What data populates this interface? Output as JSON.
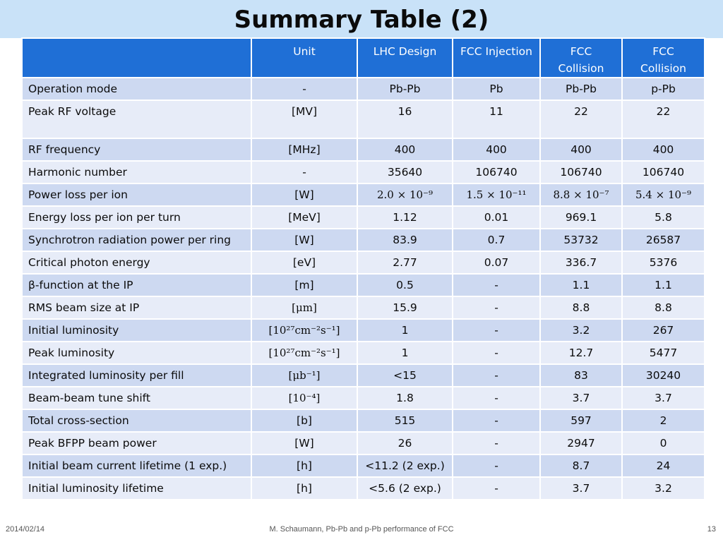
{
  "slide": {
    "title": "Summary Table (2)",
    "footer": {
      "date": "2014/02/14",
      "citation": "M. Schaumann, Pb-Pb and p-Pb performance of FCC",
      "page": "13"
    }
  },
  "table": {
    "headers": [
      "",
      "Unit",
      "LHC Design",
      "FCC Injection",
      "FCC Collision",
      "FCC Collision"
    ],
    "rows": [
      {
        "param": "Operation mode",
        "unit": "-",
        "lhc": "Pb-Pb",
        "fcc_inj": "Pb",
        "fcc_col1": "Pb-Pb",
        "fcc_col2": "p-Pb"
      },
      {
        "param": "Peak RF voltage",
        "unit": "[MV]",
        "lhc": "16",
        "fcc_inj": "11",
        "fcc_col1": "22",
        "fcc_col2": "22"
      },
      {
        "param": "RF frequency",
        "unit": "[MHz]",
        "lhc": "400",
        "fcc_inj": "400",
        "fcc_col1": "400",
        "fcc_col2": "400"
      },
      {
        "param": "Harmonic number",
        "unit": "-",
        "lhc": "35640",
        "fcc_inj": "106740",
        "fcc_col1": "106740",
        "fcc_col2": "106740"
      },
      {
        "param": "Power loss per ion",
        "unit": "[W]",
        "lhc": "2.0 × 10⁻⁹",
        "fcc_inj": "1.5 × 10⁻¹¹",
        "fcc_col1": "8.8 × 10⁻⁷",
        "fcc_col2": "5.4 × 10⁻⁹"
      },
      {
        "param": "Energy loss per ion per turn",
        "unit": "[MeV]",
        "lhc": "1.12",
        "fcc_inj": "0.01",
        "fcc_col1": "969.1",
        "fcc_col2": "5.8"
      },
      {
        "param": "Synchrotron radiation power per ring",
        "unit": "[W]",
        "lhc": "83.9",
        "fcc_inj": "0.7",
        "fcc_col1": "53732",
        "fcc_col2": "26587"
      },
      {
        "param": "Critical photon energy",
        "unit": "[eV]",
        "lhc": "2.77",
        "fcc_inj": "0.07",
        "fcc_col1": "336.7",
        "fcc_col2": "5376"
      },
      {
        "param": "β-function at the IP",
        "unit": "[m]",
        "lhc": "0.5",
        "fcc_inj": "-",
        "fcc_col1": "1.1",
        "fcc_col2": "1.1"
      },
      {
        "param": "RMS beam size at IP",
        "unit": "[μm]",
        "lhc": "15.9",
        "fcc_inj": "-",
        "fcc_col1": "8.8",
        "fcc_col2": "8.8"
      },
      {
        "param": "Initial luminosity",
        "unit": "[10²⁷cm⁻²s⁻¹]",
        "lhc": "1",
        "fcc_inj": "-",
        "fcc_col1": "3.2",
        "fcc_col2": "267"
      },
      {
        "param": "Peak luminosity",
        "unit": "[10²⁷cm⁻²s⁻¹]",
        "lhc": "1",
        "fcc_inj": "-",
        "fcc_col1": "12.7",
        "fcc_col2": "5477"
      },
      {
        "param": "Integrated luminosity per fill",
        "unit": "[μb⁻¹]",
        "lhc": "<15",
        "fcc_inj": "-",
        "fcc_col1": "83",
        "fcc_col2": "30240"
      },
      {
        "param": "Beam-beam tune shift",
        "unit": "[10⁻⁴]",
        "lhc": "1.8",
        "fcc_inj": "-",
        "fcc_col1": "3.7",
        "fcc_col2": "3.7"
      },
      {
        "param": "Total cross-section",
        "unit": "[b]",
        "lhc": "515",
        "fcc_inj": "-",
        "fcc_col1": "597",
        "fcc_col2": "2"
      },
      {
        "param": "Peak BFPP beam power",
        "unit": "[W]",
        "lhc": "26",
        "fcc_inj": "-",
        "fcc_col1": "2947",
        "fcc_col2": "0"
      },
      {
        "param": "Initial beam current lifetime (1 exp.)",
        "unit": "[h]",
        "lhc": "<11.2 (2 exp.)",
        "fcc_inj": "-",
        "fcc_col1": "8.7",
        "fcc_col2": "24"
      },
      {
        "param": "Initial luminosity lifetime",
        "unit": "[h]",
        "lhc": "<5.6 (2 exp.)",
        "fcc_inj": "-",
        "fcc_col1": "3.7",
        "fcc_col2": "3.2"
      }
    ]
  },
  "colors": {
    "title_band": "#c9e2f8",
    "header_bg": "#1f6fd6",
    "row_dark": "#cdd9f1",
    "row_light": "#e7ecf8"
  }
}
